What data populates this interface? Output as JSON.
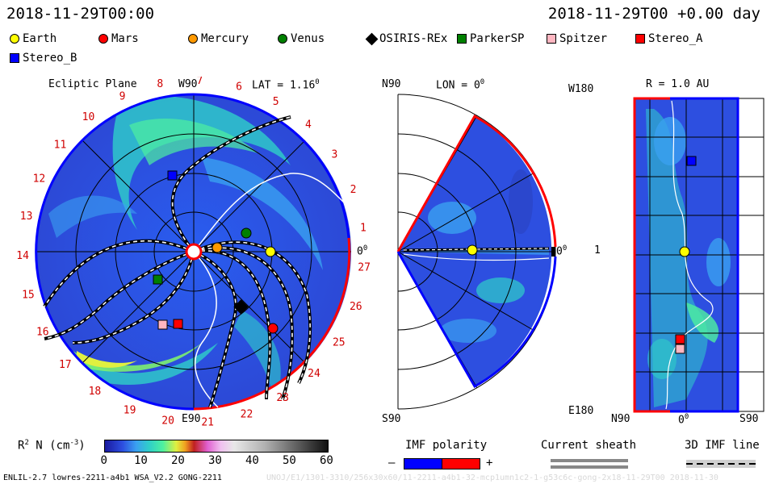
{
  "header": {
    "date_left": "2018-11-29T00:00",
    "date_right": "2018-11-29T00 +0.00 day"
  },
  "legend": [
    {
      "label": "Earth",
      "color": "#ffff00",
      "shape": "circle"
    },
    {
      "label": "Mars",
      "color": "#ff0000",
      "shape": "circle"
    },
    {
      "label": "Mercury",
      "color": "#ff9900",
      "shape": "circle"
    },
    {
      "label": "Venus",
      "color": "#008000",
      "shape": "circle"
    },
    {
      "label": "OSIRIS-REx",
      "color": "#000000",
      "shape": "diamond"
    },
    {
      "label": "ParkerSP",
      "color": "#008000",
      "shape": "square"
    },
    {
      "label": "Spitzer",
      "color": "#ffb6c1",
      "shape": "square"
    },
    {
      "label": "Stereo_A",
      "color": "#ff0000",
      "shape": "square"
    },
    {
      "label": "Stereo_B",
      "color": "#0000ff",
      "shape": "square"
    }
  ],
  "panel_left": {
    "title": "Ecliptic Plane",
    "top_label": "W90",
    "bottom_label": "E90",
    "lat_label": "LAT = 1.16",
    "lat_sup": "0",
    "right_label": "0",
    "right_sup": "0",
    "carrington_numbers": [
      "1",
      "2",
      "3",
      "4",
      "5",
      "6",
      "7",
      "8",
      "9",
      "10",
      "11",
      "12",
      "13",
      "14",
      "15",
      "16",
      "17",
      "18",
      "19",
      "20",
      "21",
      "22",
      "23",
      "24",
      "25",
      "26",
      "27"
    ]
  },
  "panel_mid": {
    "top_left": "N90",
    "lon_label": "LON = 0",
    "lon_sup": "0",
    "right_label": "0",
    "right_sup": "0",
    "bottom_left": "S90"
  },
  "panel_right": {
    "title": "R = 1.0 AU",
    "top_left": "W180",
    "mid_left": "1",
    "bottom_left": "E180",
    "bottom_n": "N90",
    "bottom_mid": "0",
    "bottom_mid_sup": "0",
    "bottom_s": "S90"
  },
  "colorbar": {
    "label_main": "R",
    "label_sup": "2",
    "label_rest": " N (cm",
    "label_exp": "-3",
    "label_close": ")",
    "ticks": [
      "0",
      "10",
      "20",
      "30",
      "40",
      "50",
      "60"
    ]
  },
  "imf_polarity": {
    "label": "IMF polarity",
    "minus": "–",
    "plus": "+"
  },
  "current_sheath": {
    "label": "Current sheath"
  },
  "imf_line": {
    "label": "3D IMF line"
  },
  "footer": {
    "left": "ENLIL-2.7 lowres-2211-a4b1 WSA_V2.2 GONG-2211",
    "right": "UNOJ/E1/1301-3310/256x30x60/11-2211-a4b1-32-mcp1umn1c2-1-g53c6c-gong-2x18-11-29T00    2018-11-30"
  }
}
